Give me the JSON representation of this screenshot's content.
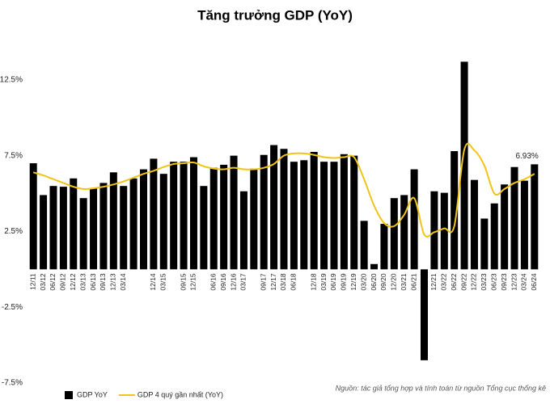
{
  "chart_data": {
    "type": "bar_line",
    "title": "Tăng trưởng GDP (YoY)",
    "source": "Nguồn: tác giả tổng hợp và tính toán từ nguồn Tổng cục thống kê",
    "categories": [
      "12/11",
      "03/12",
      "06/12",
      "09/12",
      "12/12",
      "03/13",
      "06/13",
      "09/13",
      "12/13",
      "03/14",
      null,
      null,
      "12/14",
      "03/15",
      null,
      "09/15",
      "12/15",
      null,
      "06/16",
      "09/16",
      "12/16",
      "03/17",
      null,
      "09/17",
      "12/17",
      "03/18",
      "06/18",
      null,
      "12/18",
      "03/19",
      "06/19",
      "09/19",
      "12/19",
      "03/20",
      "06/20",
      "09/20",
      "12/20",
      "03/21",
      "06/21",
      null,
      "12/21",
      "03/22",
      "06/22",
      "09/22",
      "12/22",
      "03/23",
      "06/23",
      "09/23",
      "12/23",
      "03/24",
      "06/24"
    ],
    "series": [
      {
        "name": "GDP YoY",
        "type": "bar",
        "color": "#000000",
        "values": [
          7.0,
          4.9,
          5.5,
          5.45,
          6.0,
          4.7,
          5.35,
          5.7,
          6.4,
          5.5,
          6.0,
          6.6,
          7.3,
          6.3,
          7.1,
          7.1,
          7.4,
          5.5,
          6.7,
          6.9,
          7.5,
          5.15,
          6.65,
          7.55,
          8.2,
          7.95,
          7.1,
          7.2,
          7.75,
          7.1,
          7.1,
          7.6,
          7.5,
          3.2,
          0.35,
          3.0,
          4.7,
          4.9,
          6.6,
          -6.0,
          5.15,
          5.05,
          7.8,
          13.7,
          5.9,
          3.35,
          4.35,
          5.6,
          6.75,
          5.85,
          6.93
        ],
        "value_labels": [
          null,
          null,
          null,
          null,
          null,
          null,
          null,
          null,
          null,
          null,
          null,
          null,
          null,
          null,
          null,
          null,
          null,
          null,
          null,
          null,
          null,
          null,
          null,
          null,
          null,
          null,
          null,
          null,
          null,
          null,
          null,
          null,
          null,
          null,
          null,
          null,
          null,
          null,
          null,
          null,
          null,
          null,
          null,
          null,
          null,
          null,
          null,
          null,
          null,
          null,
          "6.93%"
        ]
      },
      {
        "name": "GDP 4 quý gần nhất (YoY)",
        "type": "line",
        "color": "#f0c419",
        "values": [
          6.4,
          6.2,
          5.95,
          5.7,
          5.45,
          5.3,
          5.35,
          5.45,
          5.6,
          5.8,
          6.05,
          6.3,
          6.5,
          6.75,
          6.95,
          7.0,
          7.05,
          6.8,
          6.65,
          6.6,
          6.7,
          6.6,
          6.6,
          6.7,
          6.95,
          7.5,
          7.65,
          7.65,
          7.55,
          7.4,
          7.35,
          7.4,
          7.4,
          5.95,
          4.2,
          3.05,
          2.85,
          3.6,
          4.7,
          2.3,
          2.45,
          2.7,
          2.85,
          7.9,
          7.85,
          6.85,
          5.0,
          5.3,
          5.7,
          5.95,
          6.3
        ]
      }
    ],
    "ylim": [
      -7.5,
      15
    ],
    "yticks": [
      {
        "value": -7.5,
        "label": "-7.5%"
      },
      {
        "value": -2.5,
        "label": "-2.5%"
      },
      {
        "value": 2.5,
        "label": "2.5%"
      },
      {
        "value": 7.5,
        "label": "7.5%"
      },
      {
        "value": 12.5,
        "label": "12.5%"
      }
    ],
    "grid": false
  }
}
